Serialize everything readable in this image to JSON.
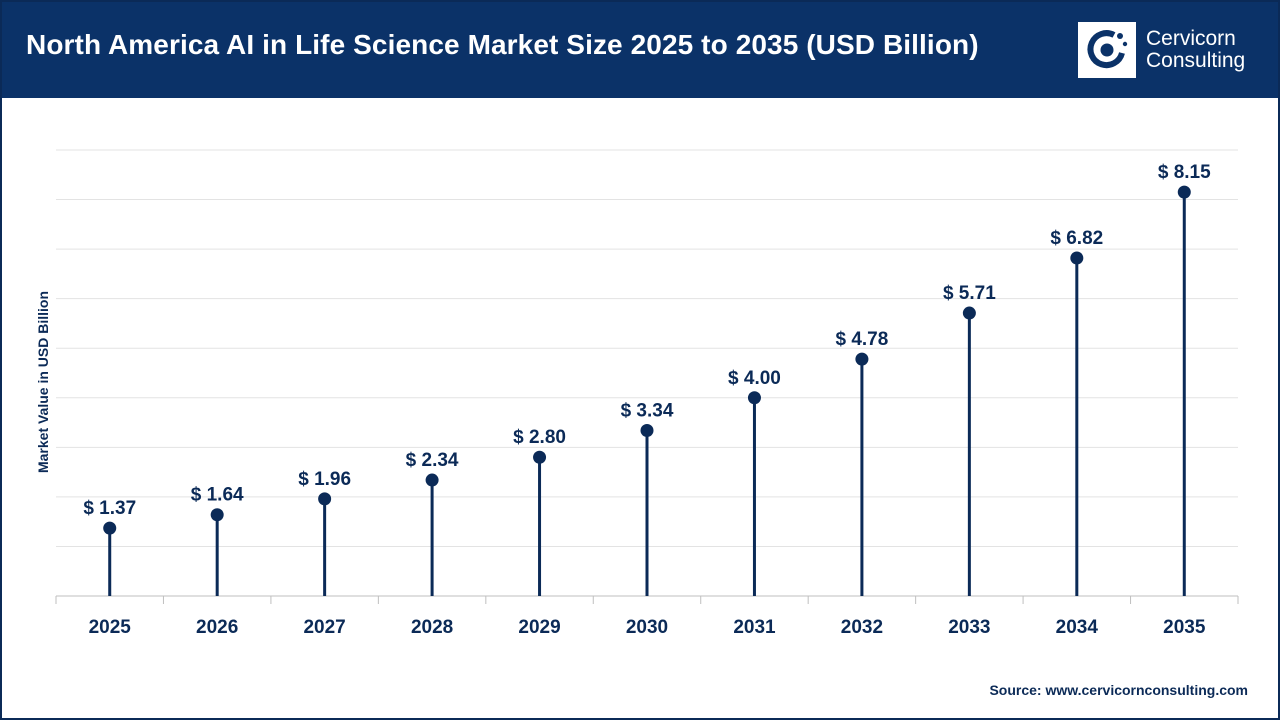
{
  "header": {
    "title": "North America AI in Life Science Market Size 2025 to 2035 (USD Billion)"
  },
  "logo": {
    "line1": "Cervicorn",
    "line2": "Consulting",
    "icon": "cervicorn-logo-icon"
  },
  "source": "Source: www.cervicornconsulting.com",
  "colors": {
    "header_bg": "#0b3268",
    "mark": "#0b2a57",
    "grid": "#e3e3e3"
  },
  "chart_data": {
    "type": "lollipop",
    "title": "North America AI in Life Science Market Size 2025 to 2035 (USD Billion)",
    "ylabel": "Market Value in USD Billion",
    "xlabel": "",
    "categories": [
      "2025",
      "2026",
      "2027",
      "2028",
      "2029",
      "2030",
      "2031",
      "2032",
      "2033",
      "2034",
      "2035"
    ],
    "values": [
      1.37,
      1.64,
      1.96,
      2.34,
      2.8,
      3.34,
      4.0,
      4.78,
      5.71,
      6.82,
      8.15
    ],
    "value_labels": [
      "$ 1.37",
      "$ 1.64",
      "$ 1.96",
      "$ 2.34",
      "$ 2.80",
      "$ 3.34",
      "$ 4.00",
      "$ 4.78",
      "$ 5.71",
      "$ 6.82",
      "$ 8.15"
    ],
    "ylim": [
      0,
      9
    ],
    "grid": true,
    "legend": "none"
  }
}
